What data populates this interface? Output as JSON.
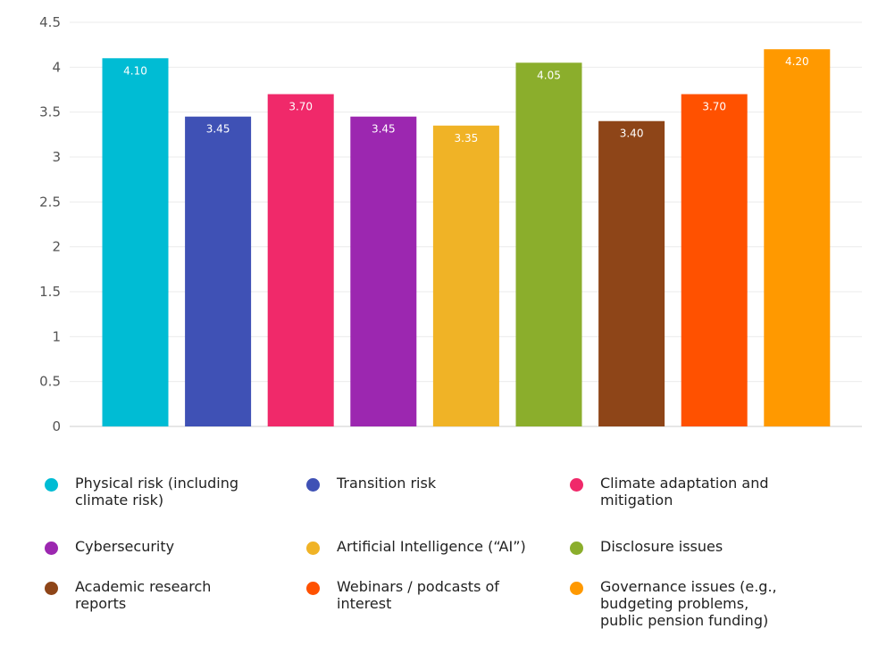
{
  "chart_data": {
    "type": "bar",
    "categories": [
      "Physical risk (including climate risk)",
      "Transition risk",
      "Climate adaptation and mitigation",
      "Cybersecurity",
      "Artificial Intelligence (“AI”)",
      "Disclosure issues",
      "Academic research reports",
      "Webinars / podcasts of interest",
      "Governance issues (e.g., budgeting problems, public pension funding)"
    ],
    "values": [
      4.1,
      3.45,
      3.7,
      3.45,
      3.35,
      4.05,
      3.4,
      3.7,
      4.2
    ],
    "data_labels": [
      "4.10",
      "3.45",
      "3.70",
      "3.45",
      "3.35",
      "4.05",
      "3.40",
      "3.70",
      "4.20"
    ],
    "colors": [
      "#00BCD4",
      "#3F51B5",
      "#F0296A",
      "#9C27B0",
      "#F0B326",
      "#8BAE2C",
      "#8E4518",
      "#FF5100",
      "#FF9900"
    ],
    "ylim": [
      0,
      4.5
    ],
    "yticks": [
      0,
      0.5,
      1,
      1.5,
      2,
      2.5,
      3,
      3.5,
      4,
      4.5
    ],
    "ytick_labels": [
      "0",
      "0.5",
      "1",
      "1.5",
      "2",
      "2.5",
      "3",
      "3.5",
      "4",
      "4.5"
    ],
    "grid": true,
    "legend_position": "bottom",
    "legend": [
      {
        "label": "Physical risk (including climate risk)",
        "lines": [
          "Physical risk (including",
          "climate risk)"
        ],
        "color": "#00BCD4"
      },
      {
        "label": "Transition risk",
        "lines": [
          "Transition risk"
        ],
        "color": "#3F51B5"
      },
      {
        "label": "Climate adaptation and mitigation",
        "lines": [
          "Climate adaptation and",
          "mitigation"
        ],
        "color": "#F0296A"
      },
      {
        "label": "Cybersecurity",
        "lines": [
          "Cybersecurity"
        ],
        "color": "#9C27B0"
      },
      {
        "label": "Artificial Intelligence (“AI”)",
        "lines": [
          "Artificial Intelligence (“AI”)"
        ],
        "color": "#F0B326"
      },
      {
        "label": "Disclosure issues",
        "lines": [
          "Disclosure issues"
        ],
        "color": "#8BAE2C"
      },
      {
        "label": "Academic research reports",
        "lines": [
          "Academic research",
          "reports"
        ],
        "color": "#8E4518"
      },
      {
        "label": "Webinars / podcasts of interest",
        "lines": [
          "Webinars / podcasts of",
          "interest"
        ],
        "color": "#FF5100"
      },
      {
        "label": "Governance issues (e.g., budgeting problems, public pension funding)",
        "lines": [
          "Governance issues (e.g.,",
          "budgeting problems,",
          "public pension funding)"
        ],
        "color": "#FF9900"
      }
    ]
  }
}
